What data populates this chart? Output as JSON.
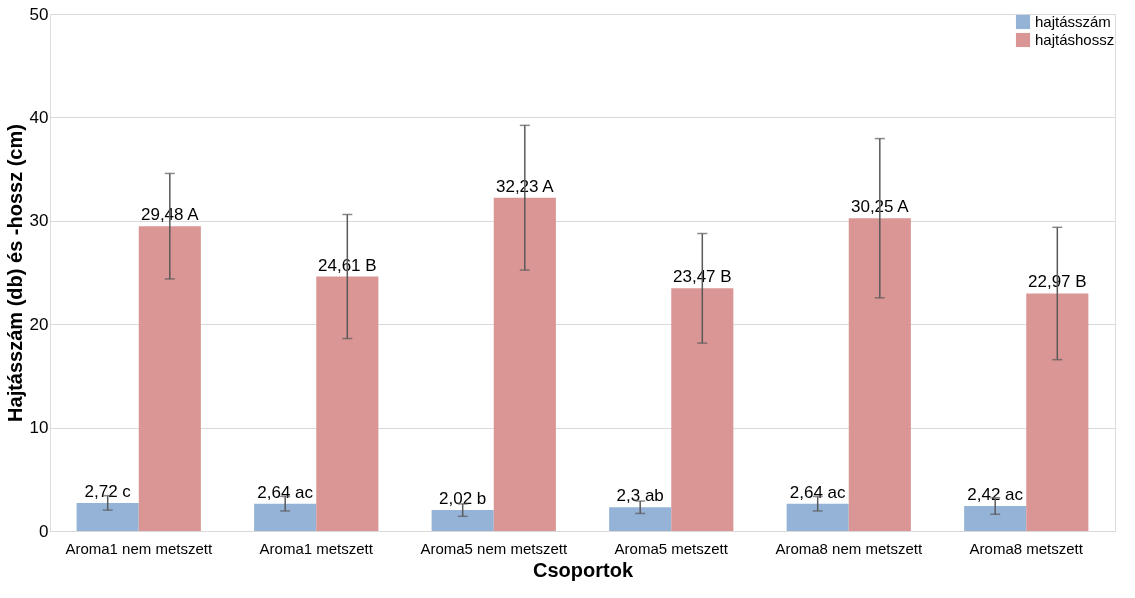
{
  "chart_data": {
    "type": "bar",
    "xlabel": "Csoportok",
    "ylabel": "Hajtásszám (db) és -hossz (cm)",
    "categories": [
      "Aroma1 nem metszett",
      "Aroma1 metszett",
      "Aroma5 nem metszett",
      "Aroma5  metszett",
      "Aroma8 nem metszett",
      "Aroma8  metszett"
    ],
    "series": [
      {
        "name": "hajtásszám",
        "color": "#95b3d7",
        "values": [
          2.72,
          2.64,
          2.02,
          2.3,
          2.64,
          2.42
        ],
        "errors": [
          0.7,
          0.7,
          0.6,
          0.6,
          0.7,
          0.8
        ],
        "value_labels": [
          "2,72 c",
          "2,64 ac",
          "2,02 b",
          "2,3 ab",
          "2,64 ac",
          "2,42 ac"
        ]
      },
      {
        "name": "hajtáshossz",
        "color": "#d99694",
        "values": [
          29.48,
          24.61,
          32.23,
          23.47,
          30.25,
          22.97
        ],
        "errors": [
          5.1,
          6.0,
          7.0,
          5.3,
          7.7,
          6.4
        ],
        "value_labels": [
          "29,48 A",
          "24,61 B",
          "32,23 A",
          "23,47 B",
          "30,25 A",
          "22,97 B"
        ]
      }
    ],
    "ylim": [
      0,
      50
    ],
    "yticks": [
      0,
      10,
      20,
      30,
      40,
      50
    ],
    "grid": "y",
    "legend": "top right"
  }
}
